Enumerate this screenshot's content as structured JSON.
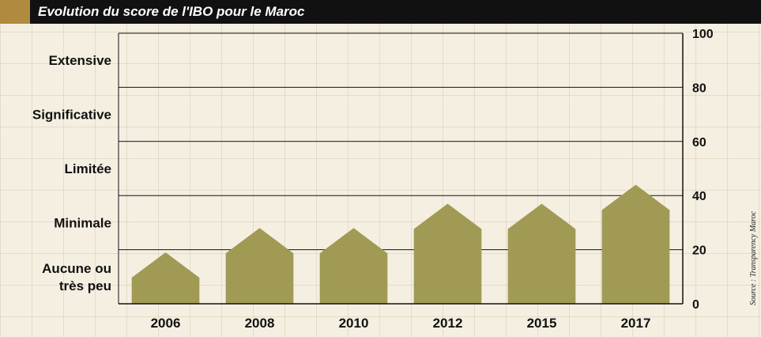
{
  "header": {
    "title": "Evolution du score de l'IBO pour le Maroc"
  },
  "source": "Source : Transparency Maroc",
  "colors": {
    "bar": "#a09a55",
    "header_bg": "#111111",
    "header_accent": "#b08a3e",
    "background": "#f5efe2"
  },
  "chart_data": {
    "type": "bar",
    "title": "Evolution du score de l'IBO pour le Maroc",
    "categories": [
      "2006",
      "2008",
      "2010",
      "2012",
      "2015",
      "2017"
    ],
    "values": [
      19,
      28,
      28,
      37,
      37,
      44
    ],
    "ylim": [
      0,
      100
    ],
    "yticks": [
      0,
      20,
      40,
      60,
      80,
      100
    ],
    "ytick_labels": [
      "0",
      "20",
      "40",
      "60",
      "80",
      "100"
    ],
    "score_levels": [
      "Extensive",
      "Significative",
      "Limitée",
      "Minimale",
      "Aucune ou\ntrès peu"
    ],
    "grid": true,
    "y_axis_side": "right"
  }
}
